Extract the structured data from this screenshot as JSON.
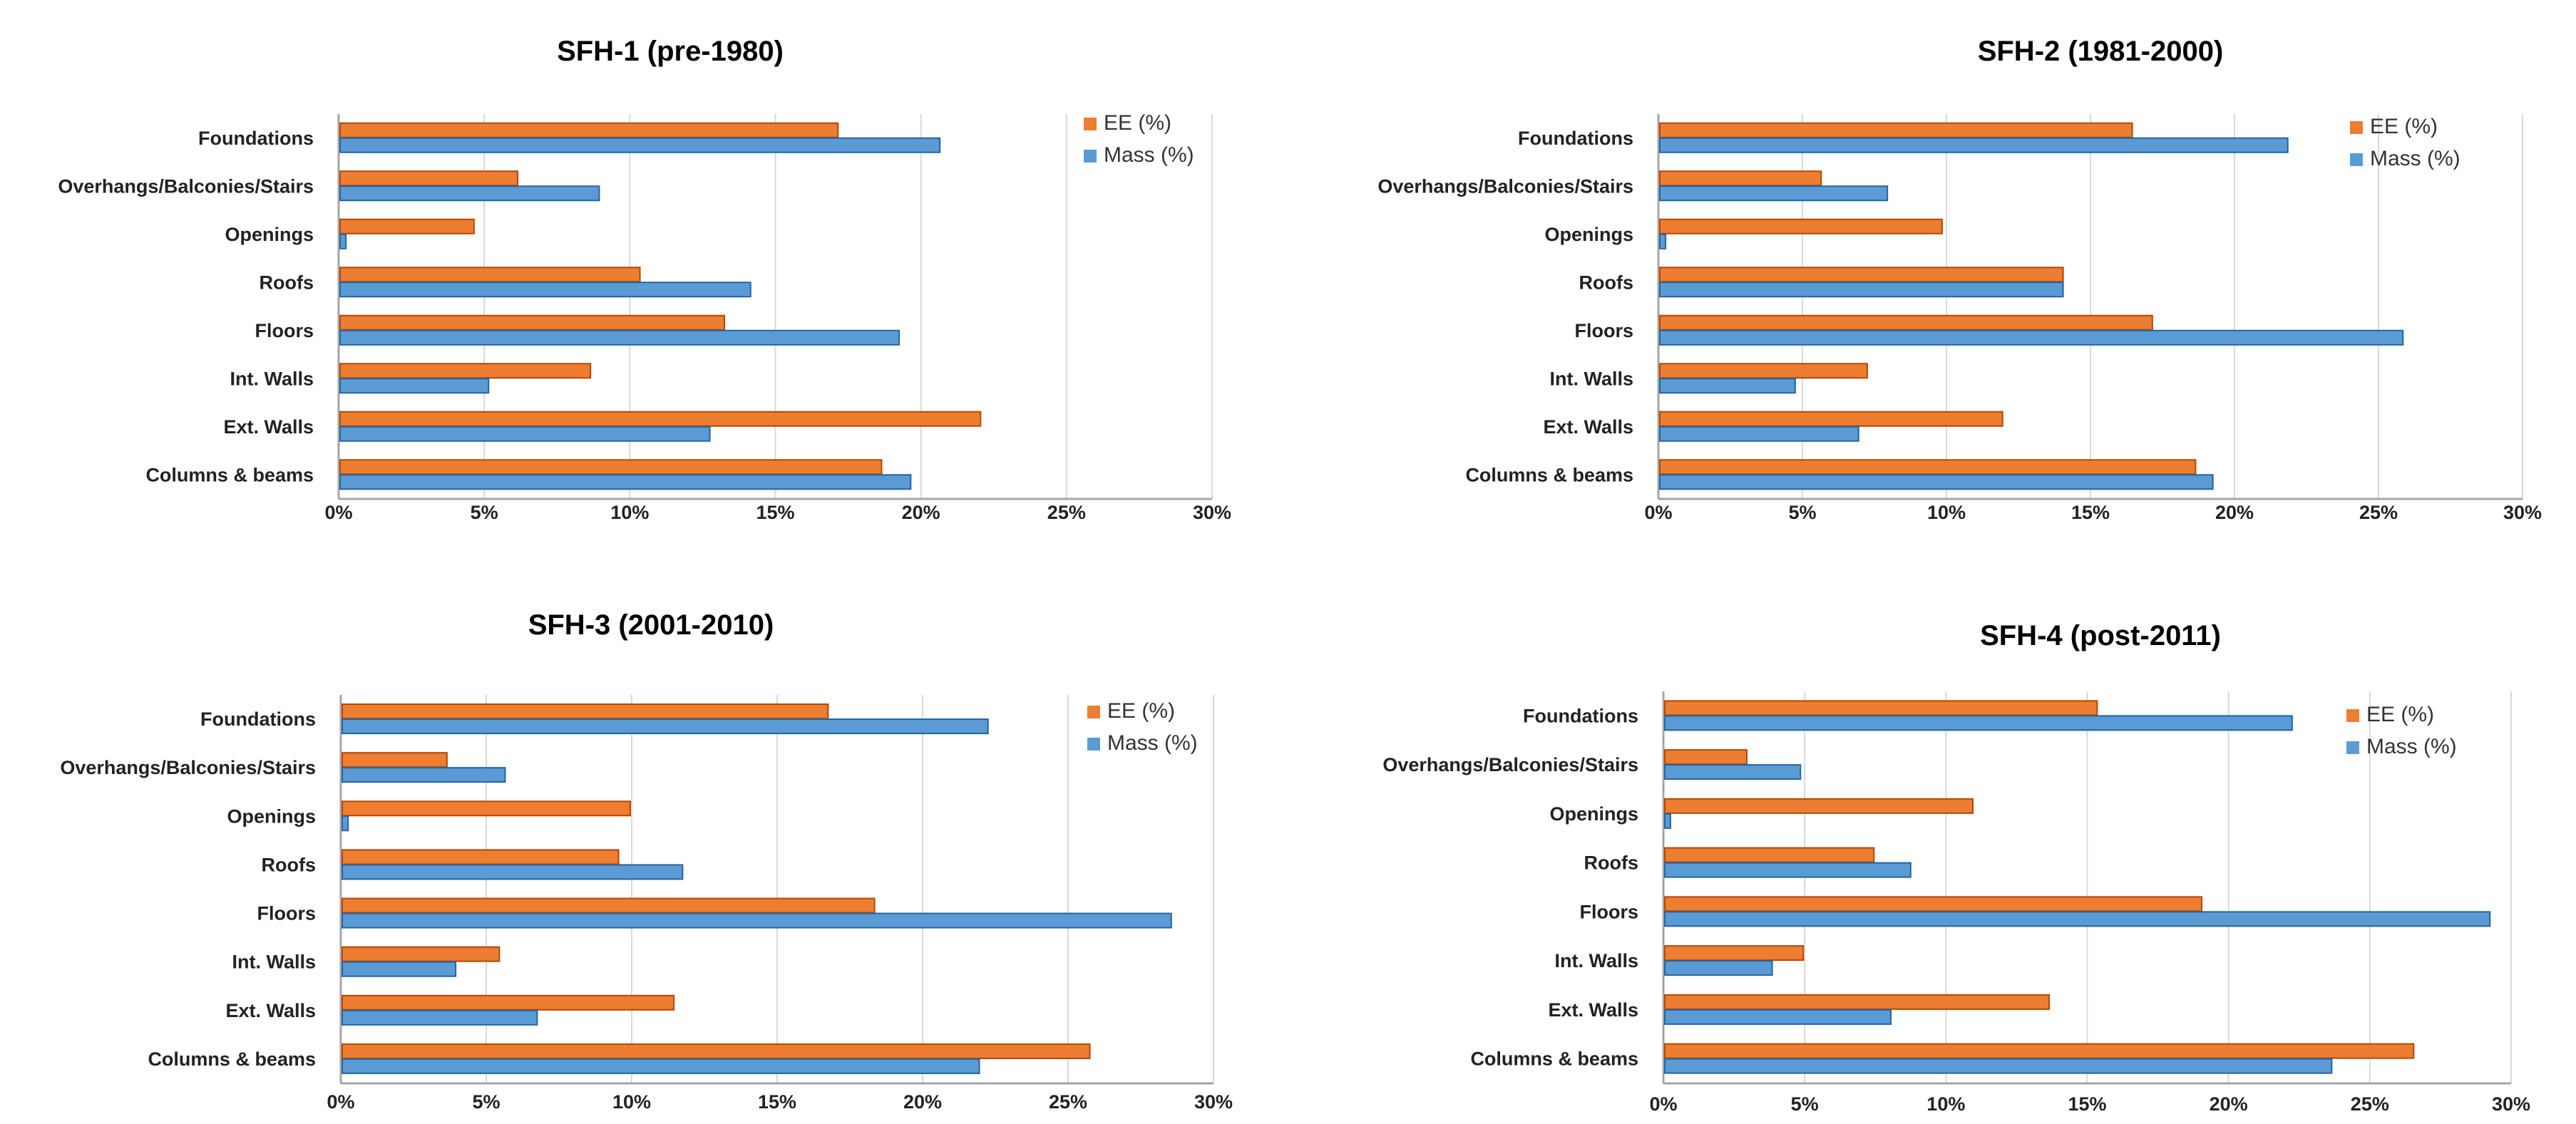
{
  "chart_data": [
    {
      "type": "bar",
      "orientation": "horizontal",
      "title": "SFH-1 (pre-1980)",
      "categories": [
        "Foundations",
        "Overhangs/Balconies/Stairs",
        "Openings",
        "Roofs",
        "Floors",
        "Int. Walls",
        "Ext. Walls",
        "Columns & beams"
      ],
      "series": [
        {
          "name": "EE (%)",
          "color": "#ED7D31",
          "values": [
            17.1,
            6.1,
            4.6,
            10.3,
            13.2,
            8.6,
            22.0,
            18.6
          ]
        },
        {
          "name": "Mass (%)",
          "color": "#5B9BD5",
          "values": [
            20.6,
            8.9,
            0.2,
            14.1,
            19.2,
            5.1,
            12.7,
            19.6
          ]
        }
      ],
      "xticks": [
        "0%",
        "5%",
        "10%",
        "15%",
        "20%",
        "25%",
        "30%"
      ],
      "xlim": [
        0,
        30
      ],
      "legend": "top-right",
      "grid": true
    },
    {
      "type": "bar",
      "orientation": "horizontal",
      "title": "SFH-2 (1981-2000)",
      "categories": [
        "Foundations",
        "Overhangs/Balconies/Stairs",
        "Openings",
        "Roofs",
        "Floors",
        "Int. Walls",
        "Ext. Walls",
        "Columns & beams"
      ],
      "series": [
        {
          "name": "EE (%)",
          "color": "#ED7D31",
          "values": [
            16.4,
            5.6,
            9.8,
            14.0,
            17.1,
            7.2,
            11.9,
            18.6
          ]
        },
        {
          "name": "Mass (%)",
          "color": "#5B9BD5",
          "values": [
            21.8,
            7.9,
            0.2,
            14.0,
            25.8,
            4.7,
            6.9,
            19.2
          ]
        }
      ],
      "xticks": [
        "0%",
        "5%",
        "10%",
        "15%",
        "20%",
        "25%",
        "30%"
      ],
      "xlim": [
        0,
        30
      ],
      "legend": "top-right",
      "grid": true
    },
    {
      "type": "bar",
      "orientation": "horizontal",
      "title": "SFH-3 (2001-2010)",
      "categories": [
        "Foundations",
        "Overhangs/Balconies/Stairs",
        "Openings",
        "Roofs",
        "Floors",
        "Int. Walls",
        "Ext. Walls",
        "Columns & beams"
      ],
      "series": [
        {
          "name": "EE (%)",
          "color": "#ED7D31",
          "values": [
            16.7,
            3.6,
            9.9,
            9.5,
            18.3,
            5.4,
            11.4,
            25.7
          ]
        },
        {
          "name": "Mass (%)",
          "color": "#5B9BD5",
          "values": [
            22.2,
            5.6,
            0.2,
            11.7,
            28.5,
            3.9,
            6.7,
            21.9
          ]
        }
      ],
      "xticks": [
        "0%",
        "5%",
        "10%",
        "15%",
        "20%",
        "25%",
        "30%"
      ],
      "xlim": [
        0,
        30
      ],
      "legend": "top-right",
      "grid": true
    },
    {
      "type": "bar",
      "orientation": "horizontal",
      "title": "SFH-4 (post-2011)",
      "categories": [
        "Foundations",
        "Overhangs/Balconies/Stairs",
        "Openings",
        "Roofs",
        "Floors",
        "Int. Walls",
        "Ext. Walls",
        "Columns & beams"
      ],
      "series": [
        {
          "name": "EE (%)",
          "color": "#ED7D31",
          "values": [
            15.3,
            2.9,
            10.9,
            7.4,
            19.0,
            4.9,
            13.6,
            26.5
          ]
        },
        {
          "name": "Mass (%)",
          "color": "#5B9BD5",
          "values": [
            22.2,
            4.8,
            0.2,
            8.7,
            29.2,
            3.8,
            8.0,
            23.6
          ]
        }
      ],
      "xticks": [
        "0%",
        "5%",
        "10%",
        "15%",
        "20%",
        "25%",
        "30%"
      ],
      "xlim": [
        0,
        30
      ],
      "legend": "top-right",
      "grid": true
    }
  ]
}
